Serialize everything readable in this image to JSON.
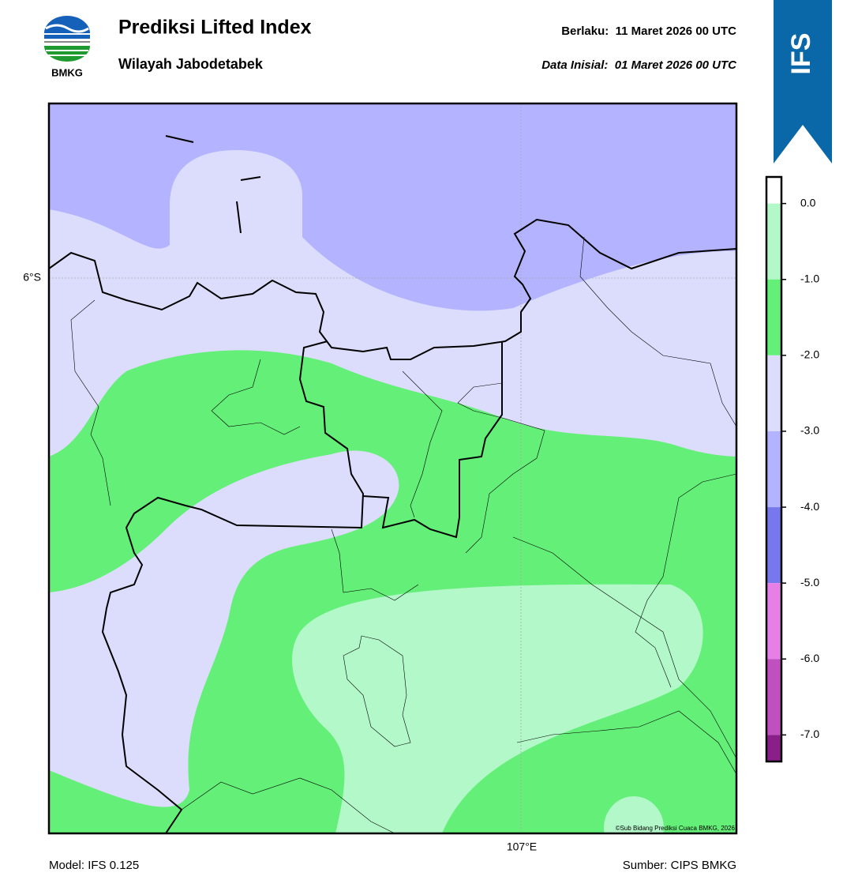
{
  "header": {
    "title": "Prediksi Lifted Index",
    "subtitle": "Wilayah Jabodetabek",
    "valid": "Berlaku:  11 Maret 2026 00 UTC",
    "init": "Data Inisial:  01 Maret 2026 00 UTC"
  },
  "logo_text": "BMKG",
  "badge": "IFS",
  "map": {
    "lat_label": "6°S",
    "lon_label": "107°E",
    "credit": "©Sub Bidang Prediksi Cuaca BMKG, 2026"
  },
  "colorbar": {
    "lim": [
      -7.35,
      0.35
    ],
    "ticks": [
      {
        "value": 0,
        "label": "0.0"
      },
      {
        "value": -1,
        "label": "-1.0"
      },
      {
        "value": -2,
        "label": "-2.0"
      },
      {
        "value": -3,
        "label": "-3.0"
      },
      {
        "value": -4,
        "label": "-4.0"
      },
      {
        "value": -5,
        "label": "-5.0"
      },
      {
        "value": -6,
        "label": "-6.0"
      },
      {
        "value": -7,
        "label": "-7.0"
      }
    ],
    "colors": [
      "#ffffff",
      "#b3f8c9",
      "#64ef78",
      "#dcdcfd",
      "#b3b3ff",
      "#7777ee",
      "#e680e6",
      "#c04fbf",
      "#8a1f8a"
    ]
  },
  "footer": {
    "model": "Model: IFS 0.125",
    "source": "Sumber: CIPS BMKG"
  }
}
